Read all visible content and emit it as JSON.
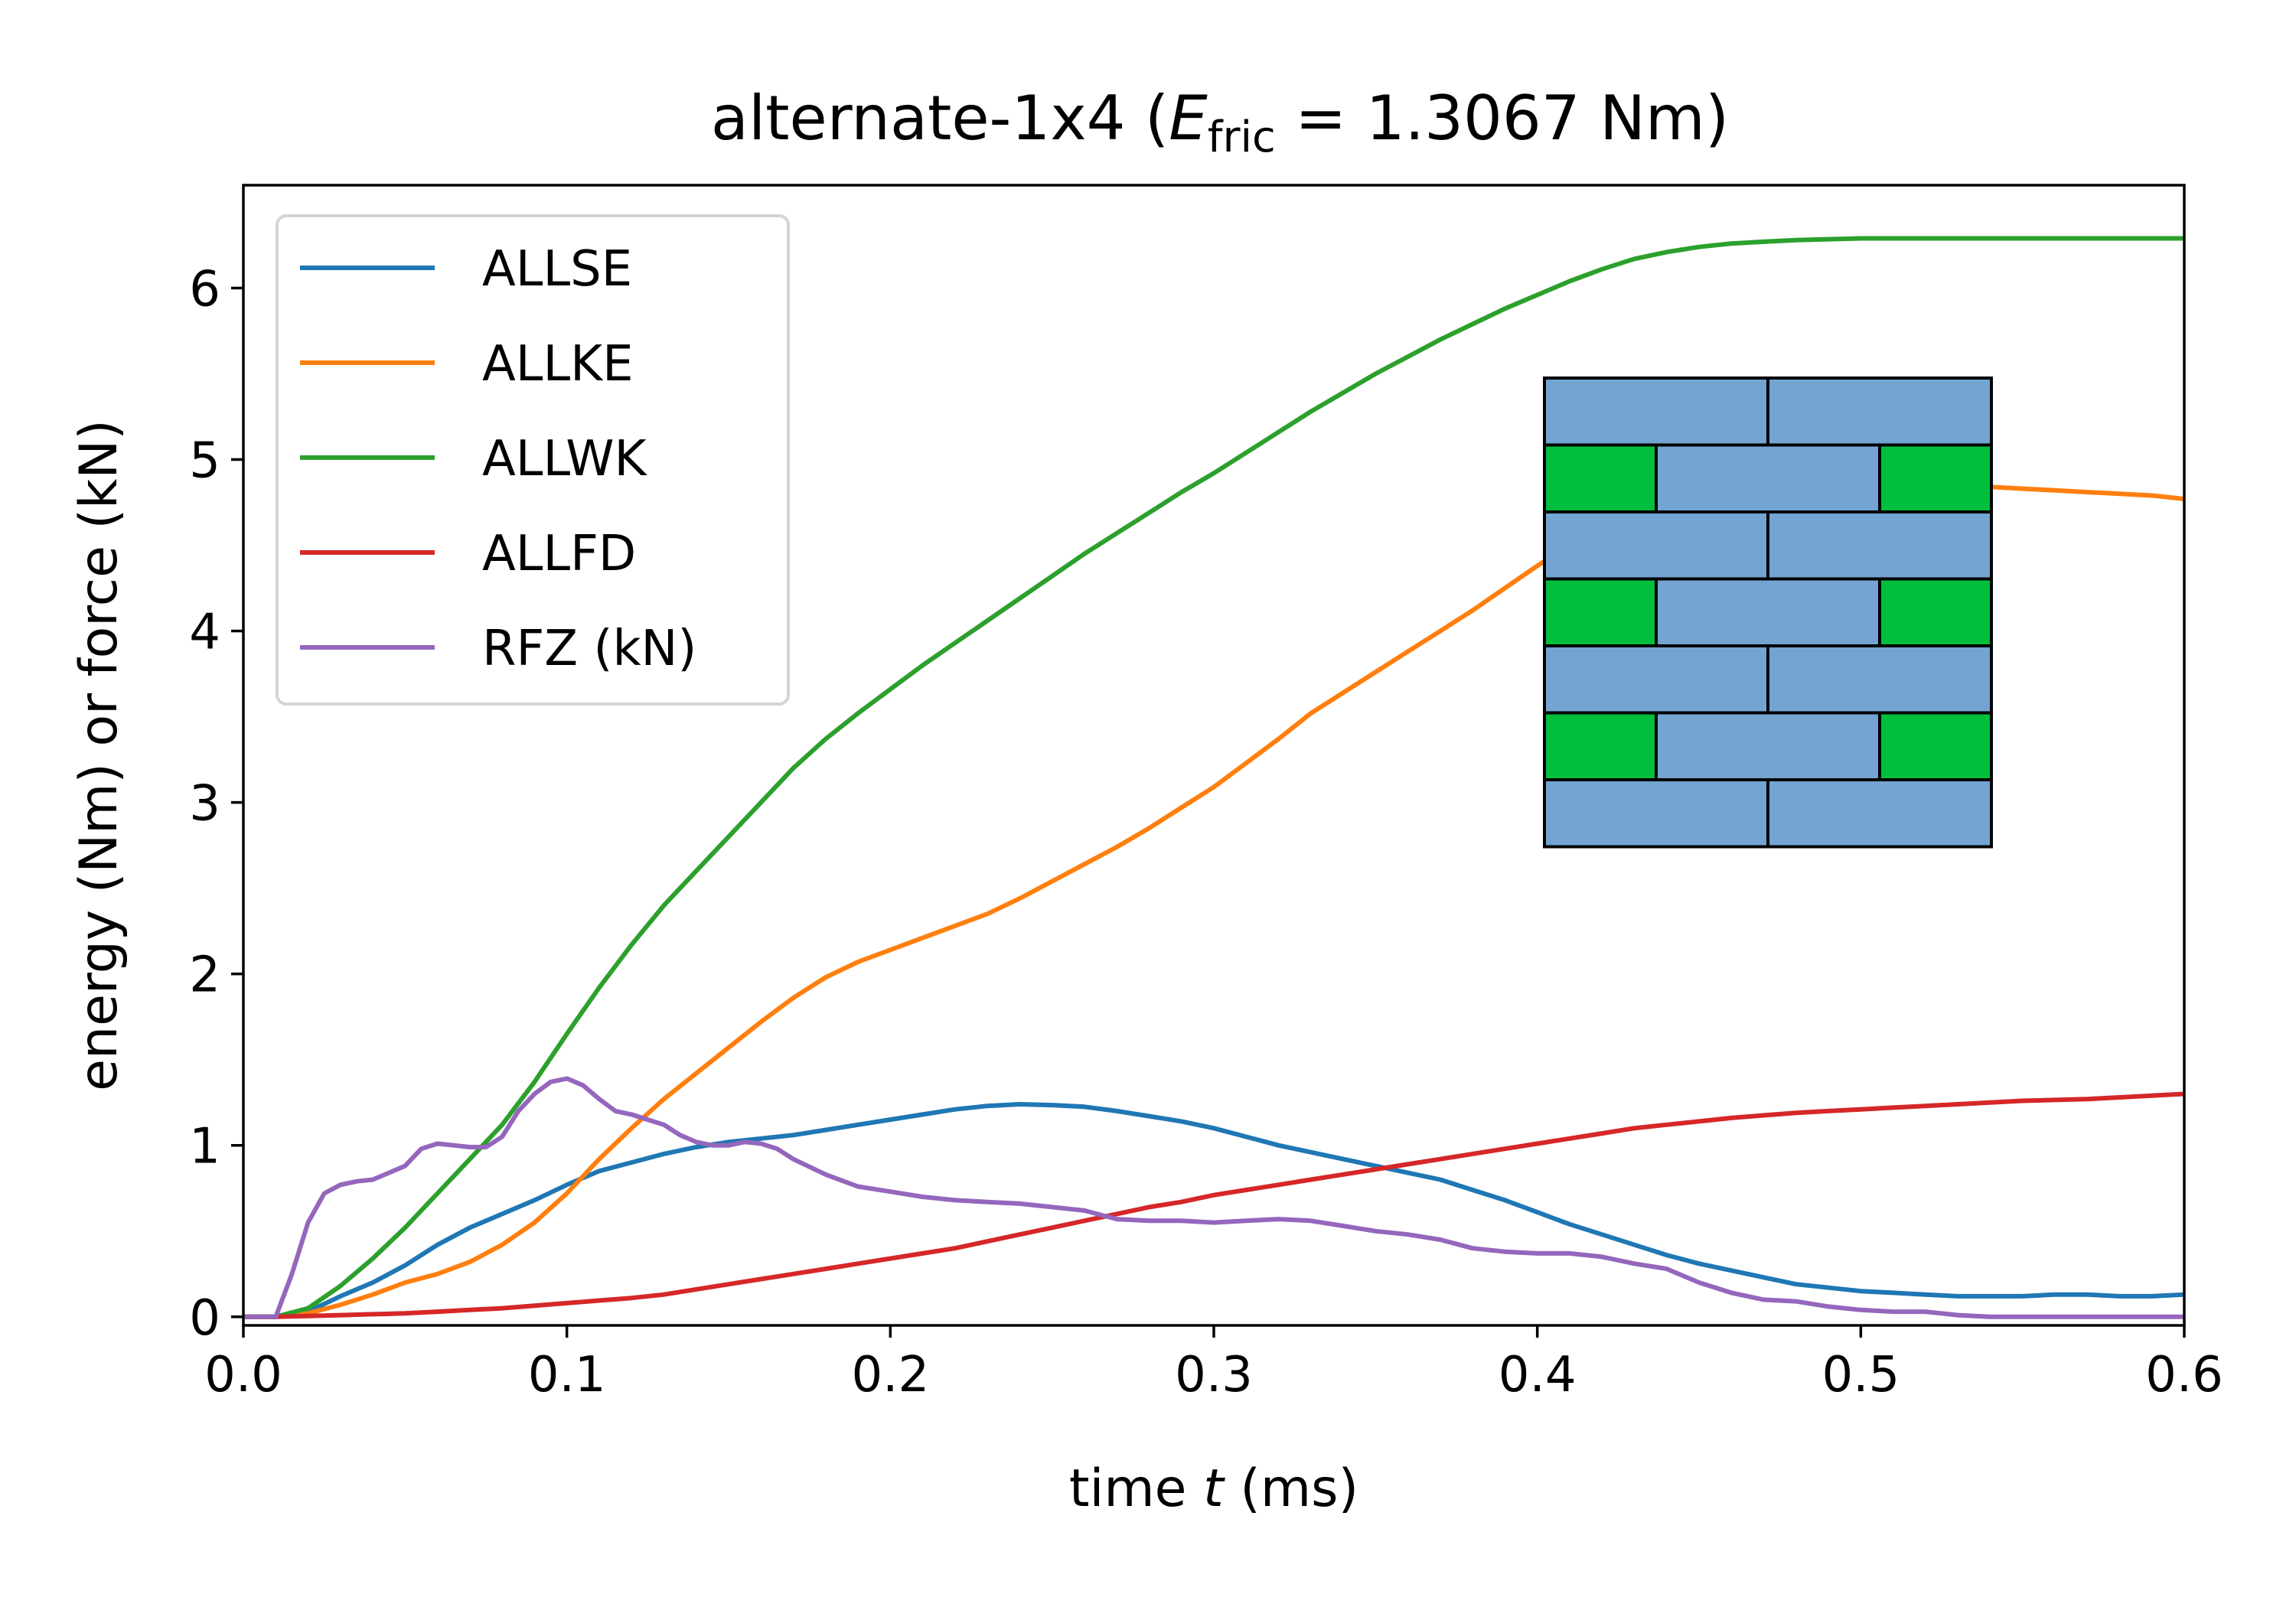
{
  "chart_data": {
    "type": "line",
    "title": {
      "prefix": "alternate-1x4 (",
      "symbol": "E",
      "subscript": "fric",
      "suffix": " = 1.3067 Nm)"
    },
    "xlabel": {
      "prefix": "time ",
      "symbol": "t",
      "suffix": " (ms)"
    },
    "ylabel": "energy (Nm) or force (kN)",
    "xlim": [
      0.0,
      0.6
    ],
    "ylim": [
      -0.05,
      6.6
    ],
    "xticks": [
      0.0,
      0.1,
      0.2,
      0.3,
      0.4,
      0.5,
      0.6
    ],
    "xtick_labels": [
      "0.0",
      "0.1",
      "0.2",
      "0.3",
      "0.4",
      "0.5",
      "0.6"
    ],
    "yticks": [
      0,
      1,
      2,
      3,
      4,
      5,
      6
    ],
    "ytick_labels": [
      "0",
      "1",
      "2",
      "3",
      "4",
      "5",
      "6"
    ],
    "grid": false,
    "legend_position": "top-left",
    "series": [
      {
        "name": "ALLSE",
        "color": "#1f77b4",
        "x": [
          0,
          0.01,
          0.02,
          0.03,
          0.04,
          0.05,
          0.06,
          0.07,
          0.08,
          0.09,
          0.1,
          0.11,
          0.12,
          0.13,
          0.14,
          0.15,
          0.16,
          0.17,
          0.18,
          0.19,
          0.2,
          0.21,
          0.22,
          0.23,
          0.24,
          0.25,
          0.26,
          0.27,
          0.28,
          0.29,
          0.3,
          0.31,
          0.32,
          0.33,
          0.34,
          0.35,
          0.36,
          0.37,
          0.38,
          0.39,
          0.4,
          0.41,
          0.42,
          0.43,
          0.44,
          0.45,
          0.46,
          0.47,
          0.48,
          0.49,
          0.5,
          0.51,
          0.52,
          0.53,
          0.54,
          0.55,
          0.56,
          0.57,
          0.58,
          0.59,
          0.6
        ],
        "y": [
          0,
          0,
          0.03,
          0.12,
          0.2,
          0.3,
          0.42,
          0.52,
          0.6,
          0.68,
          0.77,
          0.85,
          0.9,
          0.95,
          0.99,
          1.02,
          1.04,
          1.06,
          1.09,
          1.12,
          1.15,
          1.18,
          1.21,
          1.23,
          1.24,
          1.235,
          1.225,
          1.2,
          1.17,
          1.14,
          1.1,
          1.05,
          1.0,
          0.96,
          0.92,
          0.88,
          0.84,
          0.8,
          0.74,
          0.68,
          0.61,
          0.54,
          0.48,
          0.42,
          0.36,
          0.31,
          0.27,
          0.23,
          0.19,
          0.17,
          0.15,
          0.14,
          0.13,
          0.12,
          0.12,
          0.12,
          0.13,
          0.13,
          0.12,
          0.12,
          0.13
        ]
      },
      {
        "name": "ALLKE",
        "color": "#ff7f0e",
        "x": [
          0,
          0.01,
          0.02,
          0.03,
          0.04,
          0.05,
          0.06,
          0.07,
          0.08,
          0.09,
          0.1,
          0.11,
          0.12,
          0.13,
          0.14,
          0.15,
          0.16,
          0.17,
          0.18,
          0.19,
          0.2,
          0.21,
          0.22,
          0.23,
          0.24,
          0.25,
          0.26,
          0.27,
          0.28,
          0.29,
          0.3,
          0.31,
          0.32,
          0.33,
          0.34,
          0.35,
          0.36,
          0.37,
          0.38,
          0.39,
          0.4,
          0.41,
          0.42,
          0.43,
          0.44,
          0.45,
          0.46,
          0.47,
          0.48,
          0.49,
          0.5,
          0.51,
          0.52,
          0.53,
          0.54,
          0.55,
          0.56,
          0.57,
          0.58,
          0.59,
          0.6
        ],
        "y": [
          0,
          0,
          0.02,
          0.07,
          0.13,
          0.2,
          0.25,
          0.32,
          0.42,
          0.55,
          0.72,
          0.92,
          1.1,
          1.27,
          1.42,
          1.57,
          1.72,
          1.86,
          1.98,
          2.07,
          2.14,
          2.21,
          2.28,
          2.35,
          2.44,
          2.54,
          2.64,
          2.74,
          2.85,
          2.97,
          3.09,
          3.23,
          3.37,
          3.52,
          3.64,
          3.76,
          3.88,
          4.0,
          4.12,
          4.25,
          4.38,
          4.5,
          4.62,
          4.72,
          4.8,
          4.86,
          4.9,
          4.91,
          4.91,
          4.9,
          4.89,
          4.88,
          4.86,
          4.85,
          4.84,
          4.83,
          4.82,
          4.81,
          4.8,
          4.79,
          4.77
        ]
      },
      {
        "name": "ALLWK",
        "color": "#2ca02c",
        "x": [
          0,
          0.01,
          0.02,
          0.03,
          0.04,
          0.05,
          0.06,
          0.07,
          0.08,
          0.09,
          0.1,
          0.11,
          0.12,
          0.13,
          0.14,
          0.15,
          0.16,
          0.17,
          0.18,
          0.19,
          0.2,
          0.21,
          0.22,
          0.23,
          0.24,
          0.25,
          0.26,
          0.27,
          0.28,
          0.29,
          0.3,
          0.31,
          0.32,
          0.33,
          0.34,
          0.35,
          0.36,
          0.37,
          0.38,
          0.39,
          0.4,
          0.41,
          0.42,
          0.43,
          0.44,
          0.45,
          0.46,
          0.47,
          0.48,
          0.49,
          0.5,
          0.51,
          0.52,
          0.53,
          0.54,
          0.55,
          0.56,
          0.57,
          0.58,
          0.59,
          0.6
        ],
        "y": [
          0,
          0,
          0.05,
          0.18,
          0.34,
          0.52,
          0.72,
          0.92,
          1.12,
          1.37,
          1.65,
          1.92,
          2.17,
          2.4,
          2.6,
          2.8,
          3.0,
          3.2,
          3.37,
          3.52,
          3.66,
          3.8,
          3.93,
          4.06,
          4.19,
          4.32,
          4.45,
          4.57,
          4.69,
          4.81,
          4.92,
          5.04,
          5.16,
          5.28,
          5.39,
          5.5,
          5.6,
          5.7,
          5.79,
          5.88,
          5.96,
          6.04,
          6.11,
          6.17,
          6.21,
          6.24,
          6.26,
          6.27,
          6.28,
          6.285,
          6.29,
          6.29,
          6.29,
          6.29,
          6.29,
          6.29,
          6.29,
          6.29,
          6.29,
          6.29,
          6.29
        ]
      },
      {
        "name": "ALLFD",
        "color": "#d62728",
        "x": [
          0,
          0.01,
          0.02,
          0.03,
          0.04,
          0.05,
          0.06,
          0.07,
          0.08,
          0.09,
          0.1,
          0.11,
          0.12,
          0.13,
          0.14,
          0.15,
          0.16,
          0.17,
          0.18,
          0.19,
          0.2,
          0.21,
          0.22,
          0.23,
          0.24,
          0.25,
          0.26,
          0.27,
          0.28,
          0.29,
          0.3,
          0.31,
          0.32,
          0.33,
          0.34,
          0.35,
          0.36,
          0.37,
          0.38,
          0.39,
          0.4,
          0.41,
          0.42,
          0.43,
          0.44,
          0.45,
          0.46,
          0.47,
          0.48,
          0.49,
          0.5,
          0.51,
          0.52,
          0.53,
          0.54,
          0.55,
          0.56,
          0.57,
          0.58,
          0.59,
          0.6
        ],
        "y": [
          0,
          0,
          0.005,
          0.01,
          0.015,
          0.02,
          0.03,
          0.04,
          0.05,
          0.065,
          0.08,
          0.095,
          0.11,
          0.13,
          0.16,
          0.19,
          0.22,
          0.25,
          0.28,
          0.31,
          0.34,
          0.37,
          0.4,
          0.44,
          0.48,
          0.52,
          0.56,
          0.6,
          0.64,
          0.67,
          0.71,
          0.74,
          0.77,
          0.8,
          0.83,
          0.86,
          0.89,
          0.92,
          0.95,
          0.98,
          1.01,
          1.04,
          1.07,
          1.1,
          1.12,
          1.14,
          1.16,
          1.175,
          1.19,
          1.2,
          1.21,
          1.22,
          1.23,
          1.24,
          1.25,
          1.26,
          1.265,
          1.27,
          1.28,
          1.29,
          1.3
        ]
      },
      {
        "name": "RFZ (kN)",
        "color": "#9467bd",
        "x": [
          0,
          0.01,
          0.015,
          0.02,
          0.025,
          0.03,
          0.035,
          0.04,
          0.045,
          0.05,
          0.055,
          0.06,
          0.065,
          0.07,
          0.075,
          0.08,
          0.085,
          0.09,
          0.095,
          0.1,
          0.105,
          0.11,
          0.115,
          0.12,
          0.125,
          0.13,
          0.135,
          0.14,
          0.145,
          0.15,
          0.155,
          0.16,
          0.165,
          0.17,
          0.18,
          0.19,
          0.2,
          0.21,
          0.22,
          0.23,
          0.24,
          0.25,
          0.26,
          0.27,
          0.28,
          0.29,
          0.3,
          0.31,
          0.32,
          0.33,
          0.34,
          0.35,
          0.36,
          0.37,
          0.38,
          0.39,
          0.4,
          0.41,
          0.42,
          0.43,
          0.44,
          0.45,
          0.46,
          0.47,
          0.48,
          0.49,
          0.5,
          0.51,
          0.52,
          0.53,
          0.54,
          0.55,
          0.56,
          0.57,
          0.58,
          0.59,
          0.6
        ],
        "y": [
          0,
          0,
          0.25,
          0.55,
          0.72,
          0.77,
          0.79,
          0.8,
          0.84,
          0.88,
          0.98,
          1.01,
          1.0,
          0.99,
          0.99,
          1.05,
          1.2,
          1.3,
          1.37,
          1.39,
          1.35,
          1.27,
          1.2,
          1.18,
          1.15,
          1.12,
          1.06,
          1.02,
          1.0,
          1.0,
          1.02,
          1.01,
          0.98,
          0.92,
          0.83,
          0.76,
          0.73,
          0.7,
          0.68,
          0.67,
          0.66,
          0.64,
          0.62,
          0.57,
          0.56,
          0.56,
          0.55,
          0.56,
          0.57,
          0.56,
          0.53,
          0.5,
          0.48,
          0.45,
          0.4,
          0.38,
          0.37,
          0.37,
          0.35,
          0.31,
          0.28,
          0.2,
          0.14,
          0.1,
          0.09,
          0.06,
          0.04,
          0.03,
          0.03,
          0.01,
          0.0,
          0.0,
          0.0,
          0.0,
          0.0,
          0.0,
          0.0
        ]
      }
    ],
    "inset": {
      "type": "brick-wall-diagram",
      "brick_color": "#73a4d2",
      "highlight_color": "#00bf3c",
      "outline_color": "#000000",
      "rows": [
        {
          "pattern": "half-half",
          "highlighted": false
        },
        {
          "pattern": "end-middle-end",
          "highlighted": true
        },
        {
          "pattern": "half-half",
          "highlighted": false
        },
        {
          "pattern": "end-middle-end",
          "highlighted": true
        },
        {
          "pattern": "half-half",
          "highlighted": false
        },
        {
          "pattern": "end-middle-end",
          "highlighted": true
        },
        {
          "pattern": "half-half",
          "highlighted": false
        }
      ]
    }
  }
}
